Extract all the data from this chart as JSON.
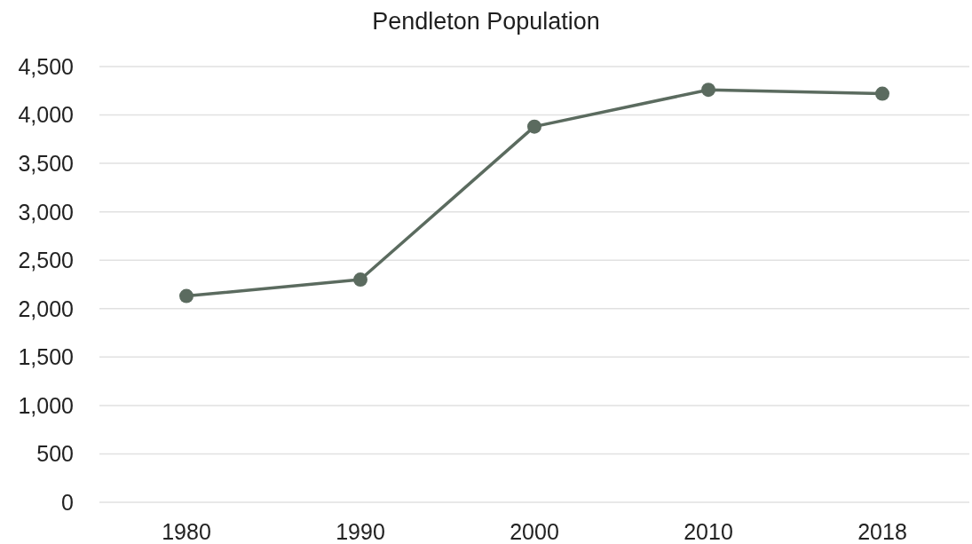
{
  "chart_data": {
    "type": "line",
    "title": "Pendleton Population",
    "categories": [
      "1980",
      "1990",
      "2000",
      "2010",
      "2018"
    ],
    "series": [
      {
        "color": "#5b6b5f",
        "values": [
          2130,
          2300,
          3880,
          4260,
          4220
        ]
      }
    ],
    "ylim": [
      0,
      4500
    ],
    "yticks": [
      {
        "value": 0,
        "label": "0"
      },
      {
        "value": 500,
        "label": "500"
      },
      {
        "value": 1000,
        "label": "1,000"
      },
      {
        "value": 1500,
        "label": "1,500"
      },
      {
        "value": 2000,
        "label": "2,000"
      },
      {
        "value": 2500,
        "label": "2,500"
      },
      {
        "value": 3000,
        "label": "3,000"
      },
      {
        "value": 3500,
        "label": "3,500"
      },
      {
        "value": 4000,
        "label": "4,000"
      },
      {
        "value": 4500,
        "label": "4,500"
      }
    ],
    "grid": "y",
    "marker": "circle",
    "line_style": "solid"
  }
}
